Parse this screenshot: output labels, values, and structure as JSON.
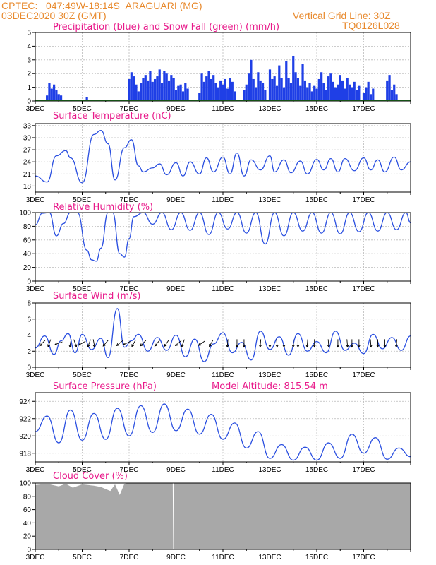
{
  "header": {
    "source": "CPTEC:",
    "coords": "047:49W-18:14S",
    "location": "ARAGUARI (MG)",
    "init_time": "03DEC2020 30Z (GMT)",
    "grid_note": "Vertical Grid Line: 30Z",
    "model_code": "TQ0126L028"
  },
  "x_axis": {
    "days": 16,
    "tick_labels": [
      "3DEC",
      "5DEC",
      "7DEC",
      "9DEC",
      "11DEC",
      "13DEC",
      "15DEC",
      "17DEC"
    ],
    "tick_days": [
      0,
      2,
      4,
      6,
      8,
      10,
      12,
      14
    ]
  },
  "colors": {
    "precip": "#1f3fe6",
    "snow": "#2aa02a",
    "line": "#2a4fe0",
    "cloud": "#a8a8a8",
    "title": "#e8198a",
    "header": "#e8892c"
  },
  "chart_data": [
    {
      "type": "bar",
      "title": "Precipitation (blue) and Snow Fall (green) (mm/h)",
      "ylim": [
        0,
        5
      ],
      "yticks": [
        "0",
        "1",
        "2",
        "3",
        "4",
        "5"
      ],
      "snow": [
        0,
        0
      ],
      "x": [
        0.5,
        0.6,
        0.7,
        0.8,
        0.9,
        1.0,
        1.1,
        2.2,
        4.0,
        4.1,
        4.2,
        4.3,
        4.4,
        4.5,
        4.6,
        4.7,
        4.8,
        4.9,
        5.0,
        5.1,
        5.2,
        5.3,
        5.4,
        5.5,
        5.6,
        5.7,
        5.8,
        5.9,
        6.0,
        6.1,
        6.2,
        6.3,
        6.4,
        6.5,
        7.0,
        7.1,
        7.2,
        7.3,
        7.4,
        7.5,
        7.6,
        7.7,
        7.8,
        7.9,
        8.0,
        8.1,
        8.2,
        8.3,
        8.4,
        8.5,
        8.9,
        9.0,
        9.1,
        9.2,
        9.3,
        9.4,
        9.5,
        9.6,
        9.7,
        9.8,
        10.0,
        10.1,
        10.2,
        10.3,
        10.4,
        10.5,
        10.6,
        10.7,
        10.8,
        10.9,
        11.0,
        11.1,
        11.2,
        11.3,
        11.4,
        11.5,
        11.6,
        11.7,
        11.8,
        11.9,
        12.0,
        12.1,
        12.2,
        12.3,
        12.4,
        12.5,
        12.6,
        12.7,
        12.8,
        12.9,
        13.0,
        13.1,
        13.2,
        13.3,
        13.4,
        13.5,
        13.6,
        13.7,
        13.8,
        14.0,
        14.1,
        14.2,
        14.3,
        14.4,
        15.0,
        15.1,
        15.2,
        15.3,
        15.4
      ],
      "values": [
        0.4,
        1.3,
        0.9,
        1.2,
        0.8,
        0.5,
        0.4,
        0.3,
        1.6,
        2.1,
        1.8,
        1.2,
        0.7,
        1.3,
        1.7,
        1.9,
        1.5,
        2.2,
        1.4,
        1.6,
        1.8,
        2.3,
        1.3,
        2.2,
        2.0,
        1.5,
        1.9,
        1.7,
        0.8,
        1.1,
        1.2,
        0.7,
        1.3,
        0.9,
        0.6,
        2.0,
        1.4,
        1.8,
        2.2,
        1.6,
        1.9,
        1.3,
        1.0,
        1.5,
        1.2,
        1.6,
        0.9,
        1.7,
        1.4,
        0.7,
        0.8,
        1.2,
        2.0,
        3.0,
        1.6,
        1.0,
        2.1,
        1.5,
        1.3,
        0.8,
        2.3,
        1.6,
        1.8,
        1.1,
        2.6,
        1.7,
        1.0,
        2.9,
        1.7,
        1.3,
        3.3,
        2.1,
        1.7,
        1.1,
        2.7,
        1.5,
        1.0,
        1.3,
        0.7,
        1.1,
        0.9,
        1.6,
        2.1,
        1.3,
        0.8,
        1.8,
        2.0,
        1.4,
        1.0,
        1.2,
        1.9,
        1.5,
        0.9,
        1.7,
        1.2,
        1.0,
        1.4,
        0.8,
        1.1,
        0.6,
        1.0,
        1.4,
        0.5,
        0.9,
        1.5,
        1.9,
        0.8,
        1.2,
        0.5
      ]
    },
    {
      "type": "line",
      "title": "Surface Temperature (nC)",
      "ylim": [
        16.5,
        33.5
      ],
      "yticks": [
        "18",
        "21",
        "24",
        "27",
        "30",
        "33"
      ],
      "x": [
        0,
        0.5,
        0.9,
        1.3,
        1.5,
        2.0,
        2.5,
        2.8,
        3.1,
        3.4,
        3.8,
        4.1,
        4.4,
        4.6,
        5.0,
        5.3,
        5.6,
        6.0,
        6.3,
        6.6,
        7.0,
        7.3,
        7.6,
        8.0,
        8.3,
        8.6,
        8.9,
        9.2,
        9.6,
        10.0,
        10.2,
        10.6,
        10.9,
        11.3,
        11.6,
        12.0,
        12.3,
        12.6,
        12.9,
        13.2,
        13.6,
        14.0,
        14.3,
        14.6,
        14.9,
        15.3,
        15.6,
        16.0
      ],
      "values": [
        20.5,
        19.0,
        25.5,
        26.8,
        25.0,
        18.8,
        30.8,
        31.8,
        28.5,
        19.5,
        27.5,
        29.5,
        23.0,
        21.5,
        22.5,
        23.5,
        20.8,
        23.8,
        20.5,
        24.0,
        21.0,
        25.0,
        21.5,
        25.2,
        21.0,
        26.2,
        20.5,
        24.5,
        22.0,
        25.5,
        21.5,
        24.5,
        21.3,
        24.2,
        21.0,
        24.6,
        22.0,
        24.8,
        21.5,
        24.8,
        21.8,
        25.0,
        22.0,
        24.5,
        21.5,
        25.2,
        22.0,
        24.0
      ]
    },
    {
      "type": "line",
      "title": "Relative Humidity (%)",
      "ylim": [
        0,
        100
      ],
      "yticks": [
        "0",
        "20",
        "40",
        "60",
        "80",
        "100"
      ],
      "x": [
        0,
        0.3,
        0.6,
        0.9,
        1.2,
        1.5,
        1.8,
        2.2,
        2.4,
        2.6,
        2.8,
        3.1,
        3.3,
        3.6,
        3.8,
        4.0,
        4.2,
        4.6,
        5.0,
        5.4,
        5.8,
        6.2,
        6.6,
        7.0,
        7.4,
        7.8,
        8.2,
        8.6,
        9.0,
        9.4,
        9.8,
        10.2,
        10.6,
        11.0,
        11.4,
        11.8,
        12.2,
        12.6,
        13.0,
        13.4,
        13.8,
        14.2,
        14.6,
        15.0,
        15.4,
        15.8,
        16.0
      ],
      "values": [
        82,
        99,
        100,
        66,
        84,
        100,
        100,
        45,
        31,
        29,
        48,
        100,
        100,
        40,
        35,
        62,
        94,
        100,
        83,
        100,
        75,
        100,
        74,
        100,
        68,
        100,
        76,
        100,
        70,
        100,
        54,
        100,
        66,
        100,
        73,
        100,
        70,
        100,
        69,
        100,
        72,
        100,
        73,
        100,
        75,
        100,
        85
      ]
    },
    {
      "type": "line",
      "title": "Surface Wind (m/s)",
      "ylim": [
        0,
        8
      ],
      "yticks": [
        "0",
        "2",
        "4",
        "6",
        "8"
      ],
      "x": [
        0,
        0.4,
        0.8,
        1.1,
        1.4,
        1.7,
        2.0,
        2.4,
        2.8,
        3.1,
        3.5,
        3.8,
        4.1,
        4.4,
        4.8,
        5.2,
        5.6,
        6.0,
        6.4,
        6.8,
        7.2,
        7.6,
        8.0,
        8.4,
        8.8,
        9.2,
        9.6,
        10.0,
        10.4,
        10.8,
        11.2,
        11.6,
        12.0,
        12.4,
        12.8,
        13.2,
        13.6,
        14.0,
        14.4,
        14.8,
        15.2,
        15.6,
        16.0
      ],
      "values": [
        2.4,
        3.9,
        1.6,
        3.3,
        4.2,
        1.8,
        4.1,
        2.2,
        3.6,
        1.2,
        7.3,
        2.5,
        3.3,
        4.1,
        2.0,
        3.7,
        2.1,
        4.0,
        1.3,
        3.5,
        0.7,
        2.9,
        4.3,
        1.8,
        3.1,
        0.9,
        4.5,
        2.2,
        3.8,
        1.5,
        4.2,
        2.0,
        3.2,
        1.8,
        4.5,
        2.1,
        3.0,
        1.7,
        4.1,
        2.3,
        3.7,
        2.1,
        3.9
      ],
      "arrow_x": [
        0.3,
        0.6,
        1.0,
        1.5,
        1.7,
        2.0,
        2.3,
        2.5,
        3.0,
        3.6,
        3.9,
        4.2,
        4.6,
        5.2,
        5.6,
        6.1,
        6.3,
        7.1,
        7.5,
        8.2,
        8.6,
        8.9,
        9.6,
        10.0,
        10.3,
        10.6,
        11.0,
        11.2,
        11.6,
        11.9,
        12.5,
        12.9,
        13.3,
        13.5,
        13.8,
        14.3,
        14.6,
        14.9,
        15.4
      ],
      "arrow_deg": [
        225,
        200,
        250,
        190,
        160,
        240,
        200,
        170,
        220,
        230,
        245,
        210,
        225,
        220,
        215,
        230,
        200,
        235,
        210,
        185,
        180,
        180,
        185,
        180,
        175,
        180,
        180,
        180,
        185,
        180,
        175,
        180,
        175,
        180,
        180,
        175,
        180,
        180,
        185
      ]
    },
    {
      "type": "line",
      "title": "Surface Pressure (hPa)",
      "ylim": [
        917,
        925
      ],
      "yticks": [
        "918",
        "920",
        "922",
        "924"
      ],
      "x": [
        0,
        0.5,
        1.0,
        1.5,
        2.0,
        2.5,
        3.0,
        3.5,
        4.0,
        4.5,
        5.0,
        5.5,
        6.0,
        6.5,
        7.0,
        7.5,
        8.0,
        8.5,
        9.0,
        9.5,
        10.0,
        10.5,
        11.0,
        11.5,
        12.0,
        12.5,
        13.0,
        13.5,
        14.0,
        14.5,
        15.0,
        15.5,
        16.0
      ],
      "values": [
        920.5,
        922.3,
        919.2,
        923.0,
        919.5,
        922.6,
        919.6,
        923.2,
        920.0,
        923.5,
        920.4,
        923.7,
        920.6,
        923.1,
        920.2,
        922.5,
        919.6,
        921.5,
        918.6,
        920.5,
        917.4,
        919.0,
        917.2,
        918.7,
        917.2,
        919.2,
        917.4,
        920.2,
        918.0,
        919.8,
        917.3,
        918.6,
        917.6
      ],
      "annotation": "Model Altitude: 815.54 m"
    },
    {
      "type": "area",
      "title": "Cloud Cover (%)",
      "ylim": [
        0,
        100
      ],
      "yticks": [
        "0",
        "20",
        "40",
        "60",
        "80",
        "100"
      ],
      "x": [
        0,
        0.5,
        1.0,
        1.3,
        1.6,
        2.0,
        2.5,
        2.8,
        3.2,
        3.4,
        3.6,
        3.8,
        4.0,
        5.86,
        5.88,
        5.9,
        5.92,
        6.0,
        7.0,
        8.0,
        16.0
      ],
      "values": [
        97,
        99,
        95,
        99,
        93,
        98,
        96,
        94,
        88,
        98,
        82,
        99,
        100,
        100,
        0,
        0,
        100,
        100,
        100,
        100,
        100
      ]
    }
  ]
}
